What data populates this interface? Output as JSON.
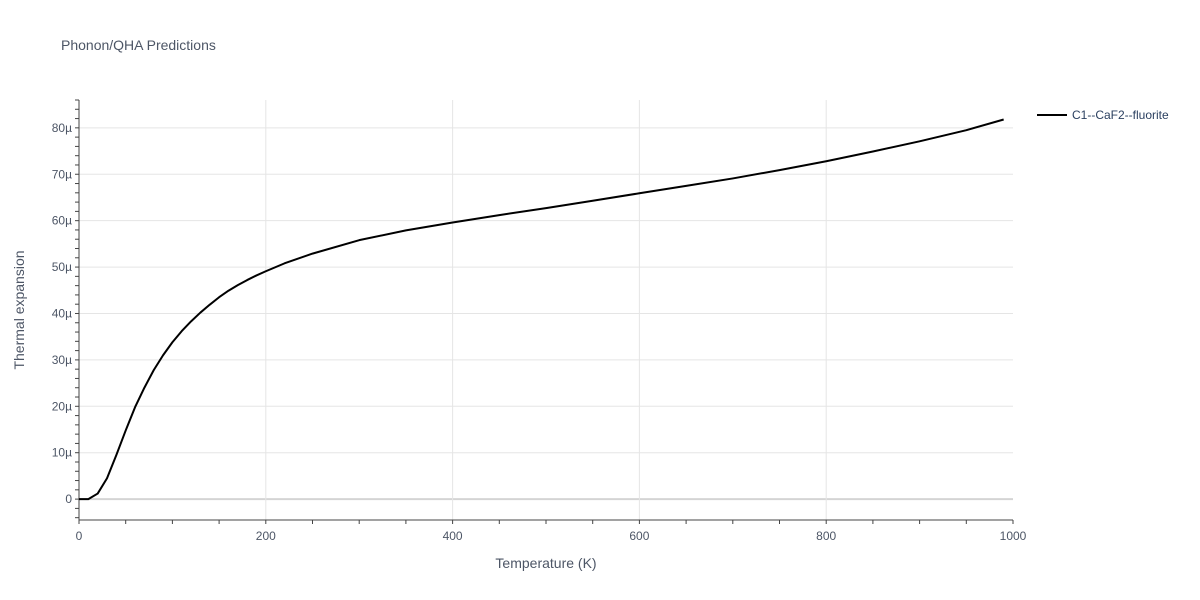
{
  "chart_data": {
    "type": "line",
    "title": "Phonon/QHA Predictions",
    "xlabel": "Temperature (K)",
    "ylabel": "Thermal expansion",
    "xlim": [
      0,
      1000
    ],
    "ylim": [
      -4.5e-06,
      8.6e-05
    ],
    "xticks": [
      0,
      200,
      400,
      600,
      800,
      1000
    ],
    "xtick_labels": [
      "0",
      "200",
      "400",
      "600",
      "800",
      "1000"
    ],
    "yticks": [
      0,
      1e-05,
      2e-05,
      3e-05,
      4e-05,
      5e-05,
      6e-05,
      7e-05,
      8e-05
    ],
    "ytick_labels": [
      "0",
      "10µ",
      "20µ",
      "30µ",
      "40µ",
      "50µ",
      "60µ",
      "70µ",
      "80µ"
    ],
    "grid": true,
    "legend_position": "top-right",
    "series": [
      {
        "name": "C1--CaF2--fluorite",
        "color": "#000000",
        "x": [
          0,
          10,
          20,
          30,
          40,
          50,
          60,
          70,
          80,
          90,
          100,
          110,
          120,
          130,
          140,
          150,
          160,
          170,
          180,
          190,
          200,
          220,
          250,
          300,
          350,
          400,
          450,
          500,
          550,
          600,
          650,
          700,
          750,
          800,
          850,
          900,
          950,
          990
        ],
        "y": [
          0,
          0,
          1.2e-06,
          4.5e-06,
          9.5e-06,
          1.48e-05,
          1.98e-05,
          2.4e-05,
          2.78e-05,
          3.1e-05,
          3.38e-05,
          3.62e-05,
          3.83e-05,
          4.02e-05,
          4.19e-05,
          4.35e-05,
          4.49e-05,
          4.61e-05,
          4.72e-05,
          4.82e-05,
          4.91e-05,
          5.08e-05,
          5.29e-05,
          5.58e-05,
          5.79e-05,
          5.96e-05,
          6.12e-05,
          6.27e-05,
          6.43e-05,
          6.59e-05,
          6.75e-05,
          6.91e-05,
          7.09e-05,
          7.28e-05,
          7.49e-05,
          7.71e-05,
          7.95e-05,
          8.18e-05
        ]
      }
    ]
  }
}
